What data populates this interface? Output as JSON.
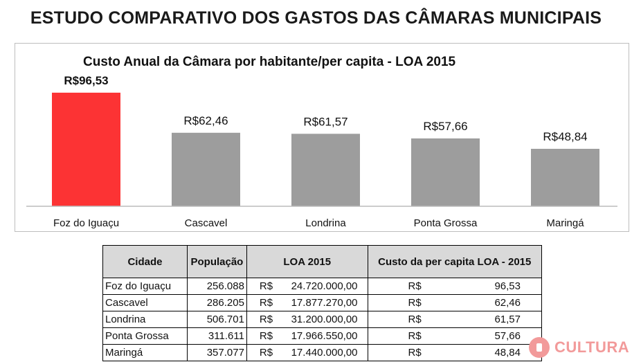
{
  "main_title": "ESTUDO COMPARATIVO DOS GASTOS DAS CÂMARAS MUNICIPAIS",
  "chart_data": {
    "type": "bar",
    "title": "Custo Anual da Câmara por habitante/per capita - LOA 2015",
    "xlabel": "",
    "ylabel": "",
    "ylim": [
      0,
      110
    ],
    "grid": false,
    "categories": [
      "Foz do Iguaçu",
      "Cascavel",
      "Londrina",
      "Ponta Grossa",
      "Maringá"
    ],
    "values": [
      96.53,
      62.46,
      61.57,
      57.66,
      48.84
    ],
    "value_labels": [
      "R$96,53",
      "R$62,46",
      "R$61,57",
      "R$57,66",
      "R$48,84"
    ],
    "colors": [
      "#fc3334",
      "#9d9d9d",
      "#9d9d9d",
      "#9d9d9d",
      "#9d9d9d"
    ],
    "highlight_index": 0
  },
  "table": {
    "headers": [
      "Cidade",
      "População",
      "LOA 2015",
      "Custo da per capita LOA - 2015"
    ],
    "currency": "R$",
    "rows": [
      {
        "cidade": "Foz do Iguaçu",
        "populacao": "256.088",
        "loa": "24.720.000,00",
        "per_capita": "96,53"
      },
      {
        "cidade": "Cascavel",
        "populacao": "286.205",
        "loa": "17.877.270,00",
        "per_capita": "62,46"
      },
      {
        "cidade": "Londrina",
        "populacao": "506.701",
        "loa": "31.200.000,00",
        "per_capita": "61,57"
      },
      {
        "cidade": "Ponta Grossa",
        "populacao": "311.611",
        "loa": "17.966.550,00",
        "per_capita": "57,66"
      },
      {
        "cidade": "Maringá",
        "populacao": "357.077",
        "loa": "17.440.000,00",
        "per_capita": "48,84"
      }
    ]
  },
  "logo": {
    "text": "CULTURA",
    "color": "#f29a9a"
  }
}
